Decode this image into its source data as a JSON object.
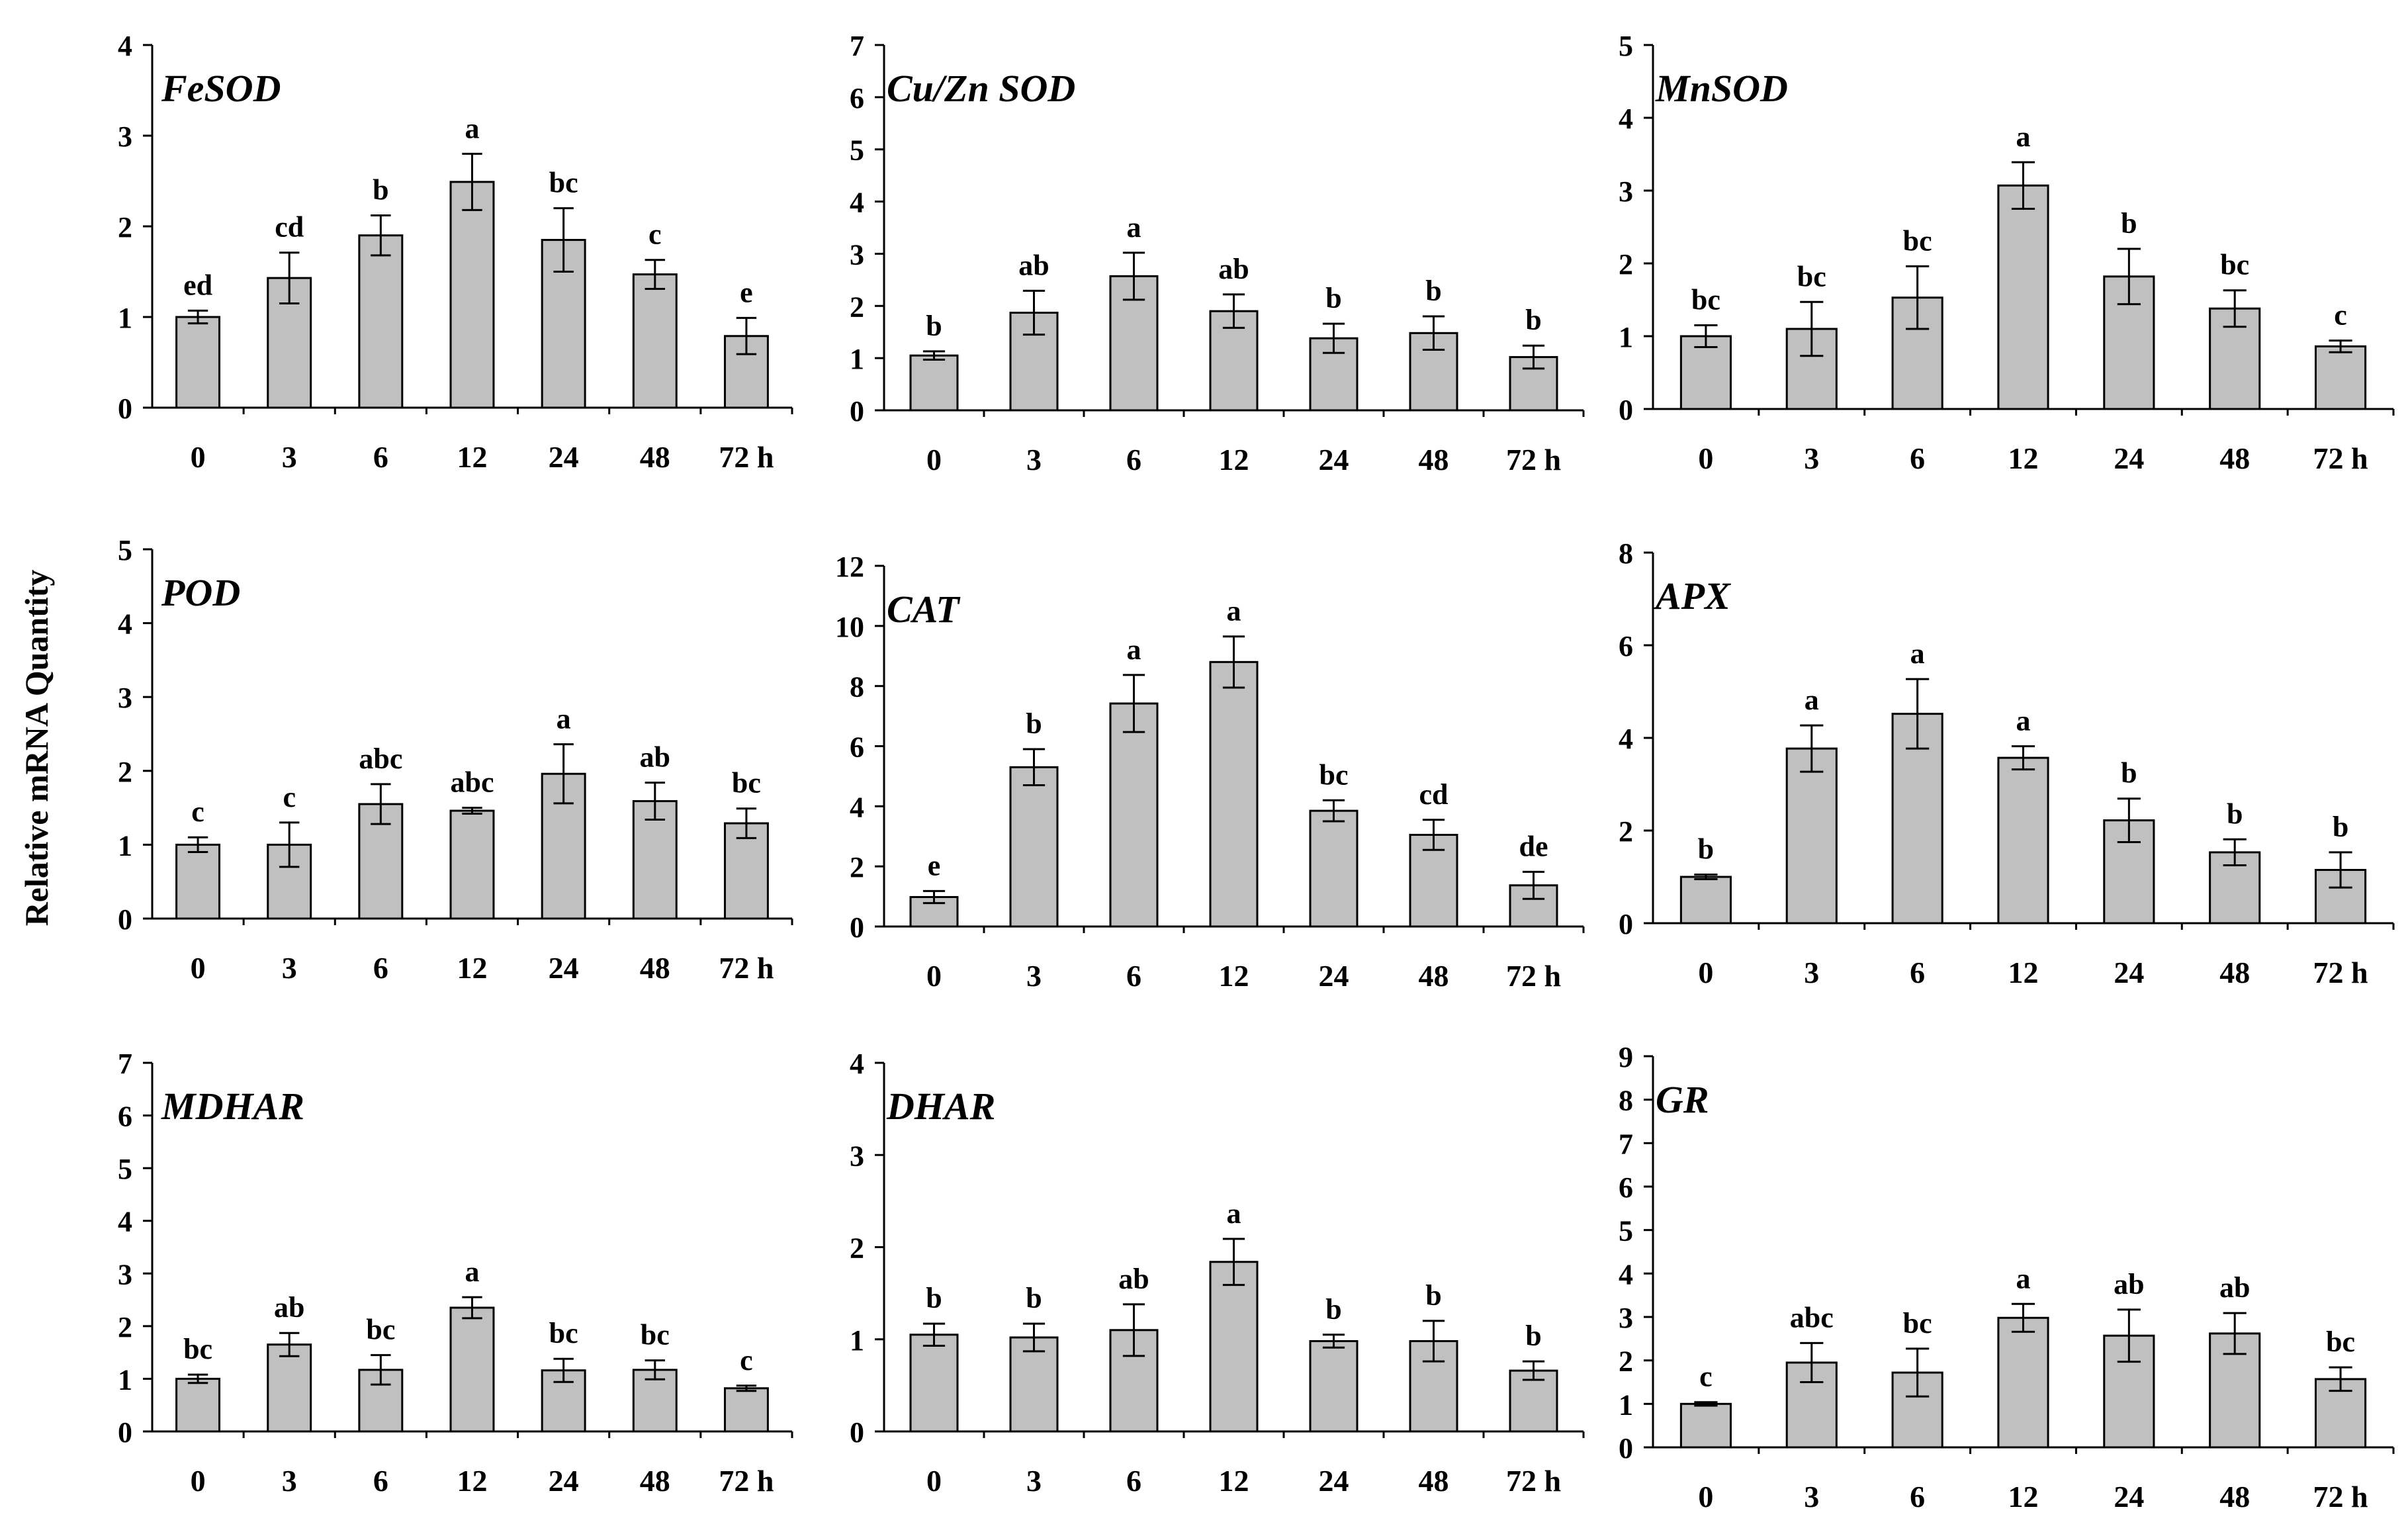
{
  "chart_data": {
    "type": "bar",
    "ylabel": "Relative mRNA Quantity",
    "categories": [
      "0",
      "3",
      "6",
      "12",
      "24",
      "48",
      "72 h"
    ],
    "panels": [
      {
        "title": "FeSOD",
        "ylim": [
          0,
          4
        ],
        "yticks": [
          0,
          1,
          2,
          3,
          4
        ],
        "values": [
          1.0,
          1.43,
          1.9,
          2.49,
          1.85,
          1.47,
          0.79
        ],
        "errors": [
          0.07,
          0.28,
          0.22,
          0.31,
          0.35,
          0.16,
          0.2
        ],
        "letters": [
          "ed",
          "cd",
          "b",
          "a",
          "bc",
          "c",
          "e"
        ]
      },
      {
        "title": "Cu/Zn SOD",
        "ylim": [
          0,
          7
        ],
        "yticks": [
          0,
          1,
          2,
          3,
          4,
          5,
          6,
          7
        ],
        "values": [
          1.05,
          1.87,
          2.57,
          1.9,
          1.38,
          1.48,
          1.02
        ],
        "errors": [
          0.08,
          0.42,
          0.45,
          0.32,
          0.28,
          0.32,
          0.22
        ],
        "letters": [
          "b",
          "ab",
          "a",
          "ab",
          "b",
          "b",
          "b"
        ]
      },
      {
        "title": "MnSOD",
        "ylim": [
          0,
          5
        ],
        "yticks": [
          0,
          1,
          2,
          3,
          4,
          5
        ],
        "values": [
          1.0,
          1.1,
          1.53,
          3.07,
          1.82,
          1.38,
          0.86
        ],
        "errors": [
          0.15,
          0.37,
          0.43,
          0.32,
          0.38,
          0.25,
          0.08
        ],
        "letters": [
          "bc",
          "bc",
          "bc",
          "a",
          "b",
          "bc",
          "c"
        ]
      },
      {
        "title": "POD",
        "ylim": [
          0,
          5
        ],
        "yticks": [
          0,
          1,
          2,
          3,
          4,
          5
        ],
        "values": [
          1.0,
          1.0,
          1.55,
          1.46,
          1.96,
          1.59,
          1.29
        ],
        "errors": [
          0.1,
          0.3,
          0.27,
          0.04,
          0.4,
          0.25,
          0.2
        ],
        "letters": [
          "c",
          "c",
          "abc",
          "abc",
          "a",
          "ab",
          "bc"
        ]
      },
      {
        "title": "CAT",
        "ylim": [
          0,
          12
        ],
        "yticks": [
          0,
          2,
          4,
          6,
          8,
          10,
          12
        ],
        "values": [
          0.98,
          5.3,
          7.42,
          8.8,
          3.85,
          3.05,
          1.37
        ],
        "errors": [
          0.2,
          0.6,
          0.95,
          0.85,
          0.35,
          0.5,
          0.45
        ],
        "letters": [
          "e",
          "b",
          "a",
          "a",
          "bc",
          "cd",
          "de"
        ]
      },
      {
        "title": "APX",
        "ylim": [
          0,
          8
        ],
        "yticks": [
          0,
          2,
          4,
          6,
          8
        ],
        "values": [
          1.0,
          3.77,
          4.52,
          3.57,
          2.22,
          1.53,
          1.15
        ],
        "errors": [
          0.05,
          0.5,
          0.75,
          0.25,
          0.47,
          0.28,
          0.38
        ],
        "letters": [
          "b",
          "a",
          "a",
          "a",
          "b",
          "b",
          "b"
        ]
      },
      {
        "title": "MDHAR",
        "ylim": [
          0,
          7
        ],
        "yticks": [
          0,
          1,
          2,
          3,
          4,
          5,
          6,
          7
        ],
        "values": [
          1.0,
          1.65,
          1.17,
          2.35,
          1.16,
          1.17,
          0.82
        ],
        "errors": [
          0.08,
          0.22,
          0.28,
          0.2,
          0.22,
          0.18,
          0.05
        ],
        "letters": [
          "bc",
          "ab",
          "bc",
          "a",
          "bc",
          "bc",
          "c"
        ]
      },
      {
        "title": "DHAR",
        "ylim": [
          0,
          4
        ],
        "yticks": [
          0,
          1,
          2,
          3,
          4
        ],
        "values": [
          1.05,
          1.02,
          1.1,
          1.84,
          0.98,
          0.98,
          0.66
        ],
        "errors": [
          0.12,
          0.15,
          0.28,
          0.25,
          0.07,
          0.22,
          0.1
        ],
        "letters": [
          "b",
          "b",
          "ab",
          "a",
          "b",
          "b",
          "b"
        ]
      },
      {
        "title": "GR",
        "ylim": [
          0,
          9
        ],
        "yticks": [
          0,
          1,
          2,
          3,
          4,
          5,
          6,
          7,
          8,
          9
        ],
        "values": [
          1.0,
          1.95,
          1.72,
          2.98,
          2.57,
          2.62,
          1.57
        ],
        "errors": [
          0.04,
          0.45,
          0.55,
          0.32,
          0.6,
          0.47,
          0.27
        ],
        "letters": [
          "c",
          "abc",
          "bc",
          "a",
          "ab",
          "ab",
          "bc"
        ]
      }
    ],
    "style": {
      "bar_fill": "#c0c0c0",
      "bar_stroke": "#000000",
      "axis_color": "#000000"
    }
  }
}
